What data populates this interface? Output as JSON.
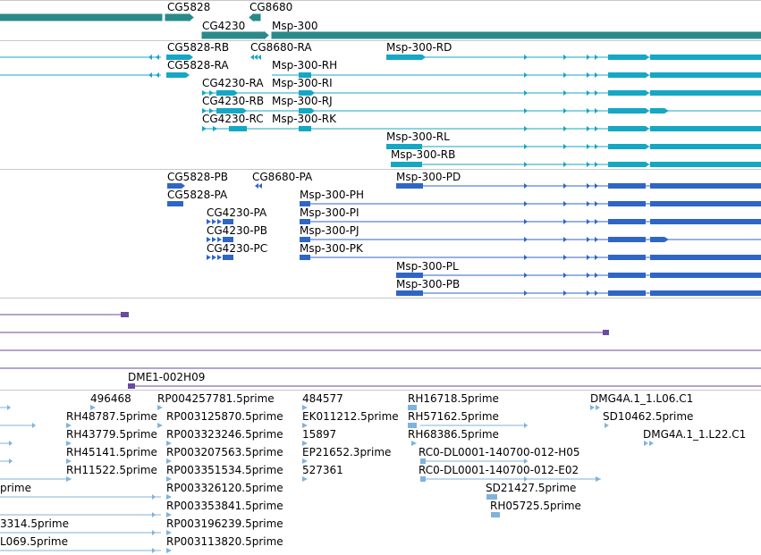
{
  "colors": {
    "gene": "#2a8a8a",
    "transcript": "#15a7c4",
    "protein": "#2f66c6",
    "clone": "#6b4aa0",
    "est": "#7fb3dd",
    "divider": "#c8c8c8"
  },
  "gene_track": {
    "labels": [
      "CG5828",
      "CG8680",
      "CG4230",
      "Msp-300"
    ]
  },
  "transcript_track": {
    "labels": [
      "CG5828-RB",
      "CG8680-RA",
      "Msp-300-RD",
      "CG5828-RA",
      "Msp-300-RH",
      "CG4230-RA",
      "Msp-300-RI",
      "CG4230-RB",
      "Msp-300-RJ",
      "CG4230-RC",
      "Msp-300-RK",
      "Msp-300-RL",
      "Msp-300-RB"
    ]
  },
  "protein_track": {
    "labels": [
      "CG5828-PB",
      "CG8680-PA",
      "Msp-300-PD",
      "CG5828-PA",
      "Msp-300-PH",
      "CG4230-PA",
      "Msp-300-PI",
      "CG4230-PB",
      "Msp-300-PJ",
      "CG4230-PC",
      "Msp-300-PK",
      "Msp-300-PL",
      "Msp-300-PB"
    ]
  },
  "clone_track": {
    "labels": [
      "DME1-002H09"
    ]
  },
  "est_track": {
    "labels": [
      "496468",
      "RP004257781.5prime",
      "484577",
      "RH16718.5prime",
      "DMG4A.1_1.L06.C1",
      "RH48787.5prime",
      "RP003125870.5prime",
      "EK011212.5prime",
      "RH57162.5prime",
      "SD10462.5prime",
      "RH43779.5prime",
      "RP003323246.5prime",
      "15897",
      "RH68386.5prime",
      "DMG4A.1_1.L22.C1",
      "RH45141.5prime",
      "RP003207563.5prime",
      "EP21652.3prime",
      "RC0-DL0001-140700-012-H05",
      "RH11522.5prime",
      "RP003351534.5prime",
      "527361",
      "RC0-DL0001-140700-012-E02",
      "prime",
      "RP003326120.5prime",
      "SD21427.5prime",
      "RP003353841.5prime",
      "RH05725.5prime",
      "3314.5prime",
      "RP003196239.5prime",
      "L069.5prime",
      "RP003113820.5prime"
    ]
  }
}
